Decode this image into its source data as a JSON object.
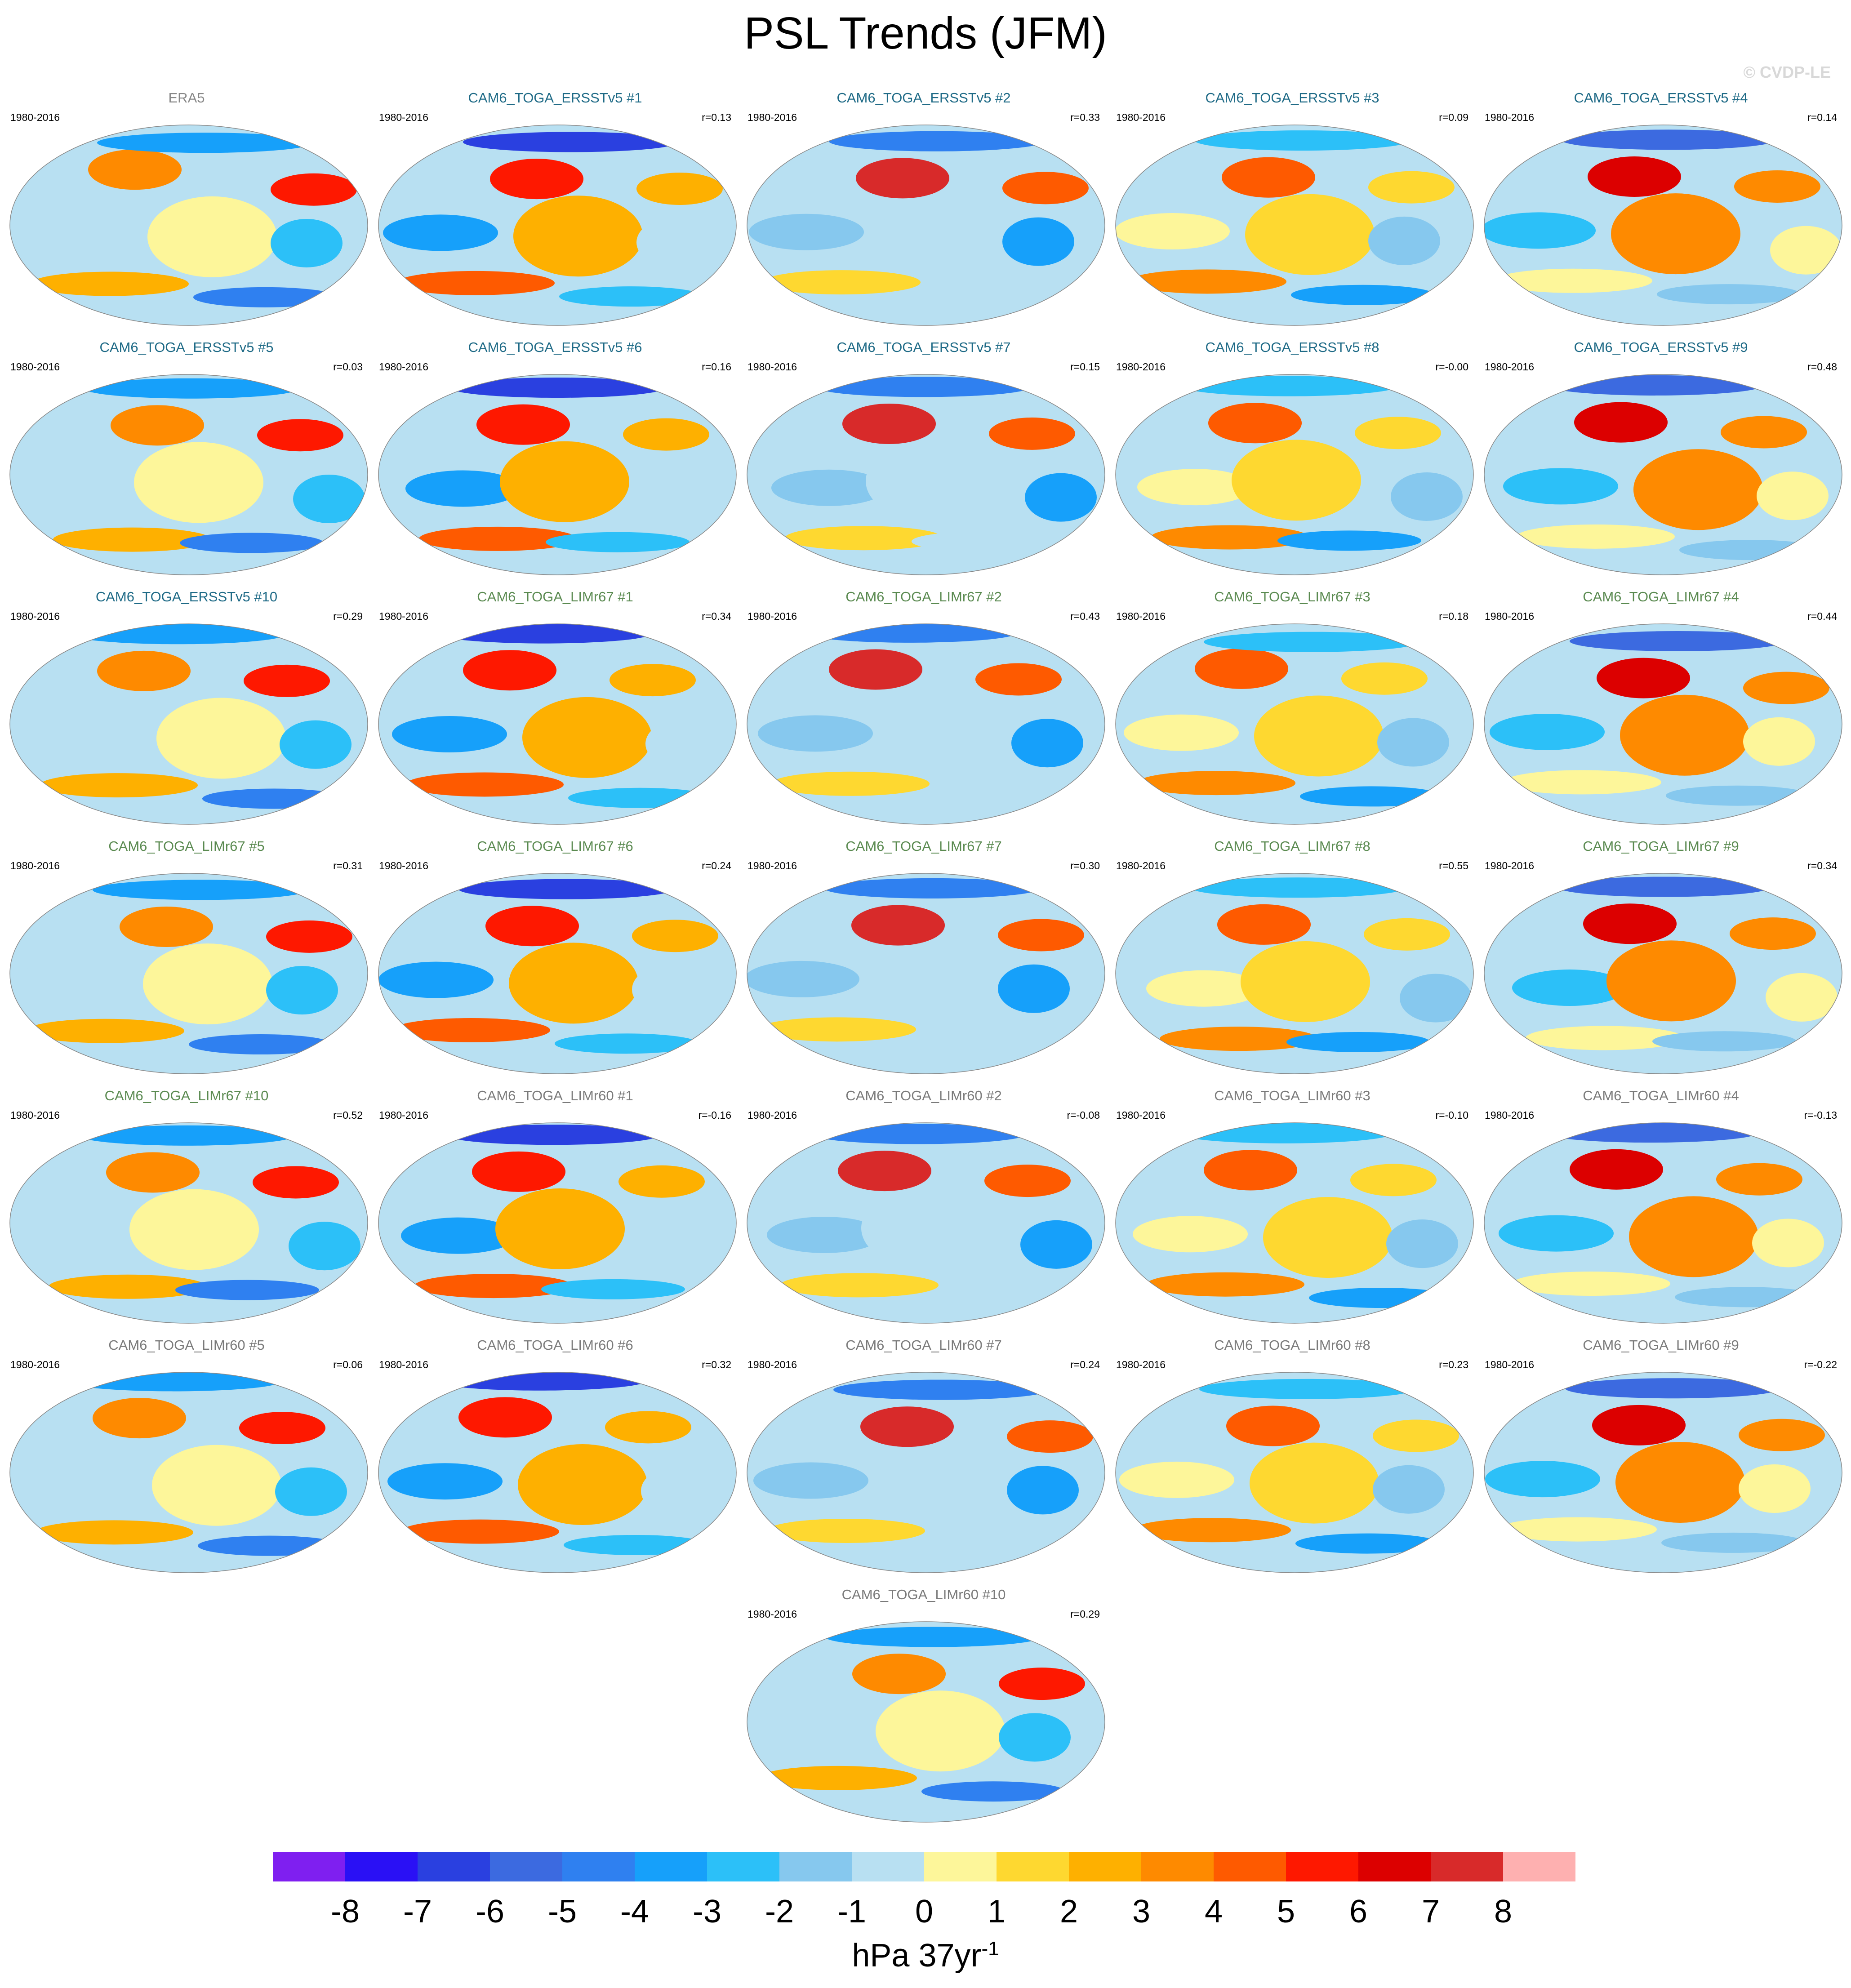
{
  "title": "PSL Trends (JFM)",
  "credit": "© CVDP-LE",
  "period": "1980-2016",
  "title_colors": {
    "ERA5": "#888888",
    "ERSSTv5": "#1e6a86",
    "LIMr67": "#5a8a50",
    "LIMr60": "#7a7a7a"
  },
  "panels": [
    {
      "title": "ERA5",
      "group": "ERA5",
      "r": ""
    },
    {
      "title": "CAM6_TOGA_ERSSTv5 #1",
      "group": "ERSSTv5",
      "r": "r=0.13"
    },
    {
      "title": "CAM6_TOGA_ERSSTv5 #2",
      "group": "ERSSTv5",
      "r": "r=0.33"
    },
    {
      "title": "CAM6_TOGA_ERSSTv5 #3",
      "group": "ERSSTv5",
      "r": "r=0.09"
    },
    {
      "title": "CAM6_TOGA_ERSSTv5 #4",
      "group": "ERSSTv5",
      "r": "r=0.14"
    },
    {
      "title": "CAM6_TOGA_ERSSTv5 #5",
      "group": "ERSSTv5",
      "r": "r=0.03"
    },
    {
      "title": "CAM6_TOGA_ERSSTv5 #6",
      "group": "ERSSTv5",
      "r": "r=0.16"
    },
    {
      "title": "CAM6_TOGA_ERSSTv5 #7",
      "group": "ERSSTv5",
      "r": "r=0.15"
    },
    {
      "title": "CAM6_TOGA_ERSSTv5 #8",
      "group": "ERSSTv5",
      "r": "r=-0.00"
    },
    {
      "title": "CAM6_TOGA_ERSSTv5 #9",
      "group": "ERSSTv5",
      "r": "r=0.48"
    },
    {
      "title": "CAM6_TOGA_ERSSTv5 #10",
      "group": "ERSSTv5",
      "r": "r=0.29"
    },
    {
      "title": "CAM6_TOGA_LIMr67 #1",
      "group": "LIMr67",
      "r": "r=0.34"
    },
    {
      "title": "CAM6_TOGA_LIMr67 #2",
      "group": "LIMr67",
      "r": "r=0.43"
    },
    {
      "title": "CAM6_TOGA_LIMr67 #3",
      "group": "LIMr67",
      "r": "r=0.18"
    },
    {
      "title": "CAM6_TOGA_LIMr67 #4",
      "group": "LIMr67",
      "r": "r=0.44"
    },
    {
      "title": "CAM6_TOGA_LIMr67 #5",
      "group": "LIMr67",
      "r": "r=0.31"
    },
    {
      "title": "CAM6_TOGA_LIMr67 #6",
      "group": "LIMr67",
      "r": "r=0.24"
    },
    {
      "title": "CAM6_TOGA_LIMr67 #7",
      "group": "LIMr67",
      "r": "r=0.30"
    },
    {
      "title": "CAM6_TOGA_LIMr67 #8",
      "group": "LIMr67",
      "r": "r=0.55"
    },
    {
      "title": "CAM6_TOGA_LIMr67 #9",
      "group": "LIMr67",
      "r": "r=0.34"
    },
    {
      "title": "CAM6_TOGA_LIMr67 #10",
      "group": "LIMr67",
      "r": "r=0.52"
    },
    {
      "title": "CAM6_TOGA_LIMr60 #1",
      "group": "LIMr60",
      "r": "r=-0.16"
    },
    {
      "title": "CAM6_TOGA_LIMr60 #2",
      "group": "LIMr60",
      "r": "r=-0.08"
    },
    {
      "title": "CAM6_TOGA_LIMr60 #3",
      "group": "LIMr60",
      "r": "r=-0.10"
    },
    {
      "title": "CAM6_TOGA_LIMr60 #4",
      "group": "LIMr60",
      "r": "r=-0.13"
    },
    {
      "title": "CAM6_TOGA_LIMr60 #5",
      "group": "LIMr60",
      "r": "r=0.06"
    },
    {
      "title": "CAM6_TOGA_LIMr60 #6",
      "group": "LIMr60",
      "r": "r=0.32"
    },
    {
      "title": "CAM6_TOGA_LIMr60 #7",
      "group": "LIMr60",
      "r": "r=0.24"
    },
    {
      "title": "CAM6_TOGA_LIMr60 #8",
      "group": "LIMr60",
      "r": "r=0.23"
    },
    {
      "title": "CAM6_TOGA_LIMr60 #9",
      "group": "LIMr60",
      "r": "r=-0.22"
    },
    {
      "title": "CAM6_TOGA_LIMr60 #10",
      "group": "LIMr60",
      "r": "r=0.29"
    }
  ],
  "colorbar": {
    "colors": [
      "#7f1ff0",
      "#2a10f5",
      "#2a40e0",
      "#3c6ae0",
      "#2f80f0",
      "#16a0fa",
      "#2cc0f8",
      "#86c8ee",
      "#b8e0f2",
      "#fdf69a",
      "#fed830",
      "#feb000",
      "#fe8a00",
      "#fe5a00",
      "#fe1800",
      "#dc0000",
      "#d82a2a",
      "#feb0b0"
    ],
    "ticks": [
      "-8",
      "-7",
      "-6",
      "-5",
      "-4",
      "-3",
      "-2",
      "-1",
      "0",
      "1",
      "2",
      "3",
      "4",
      "5",
      "6",
      "7",
      "8"
    ],
    "units": "hPa 37yr",
    "units_exp": "-1"
  }
}
